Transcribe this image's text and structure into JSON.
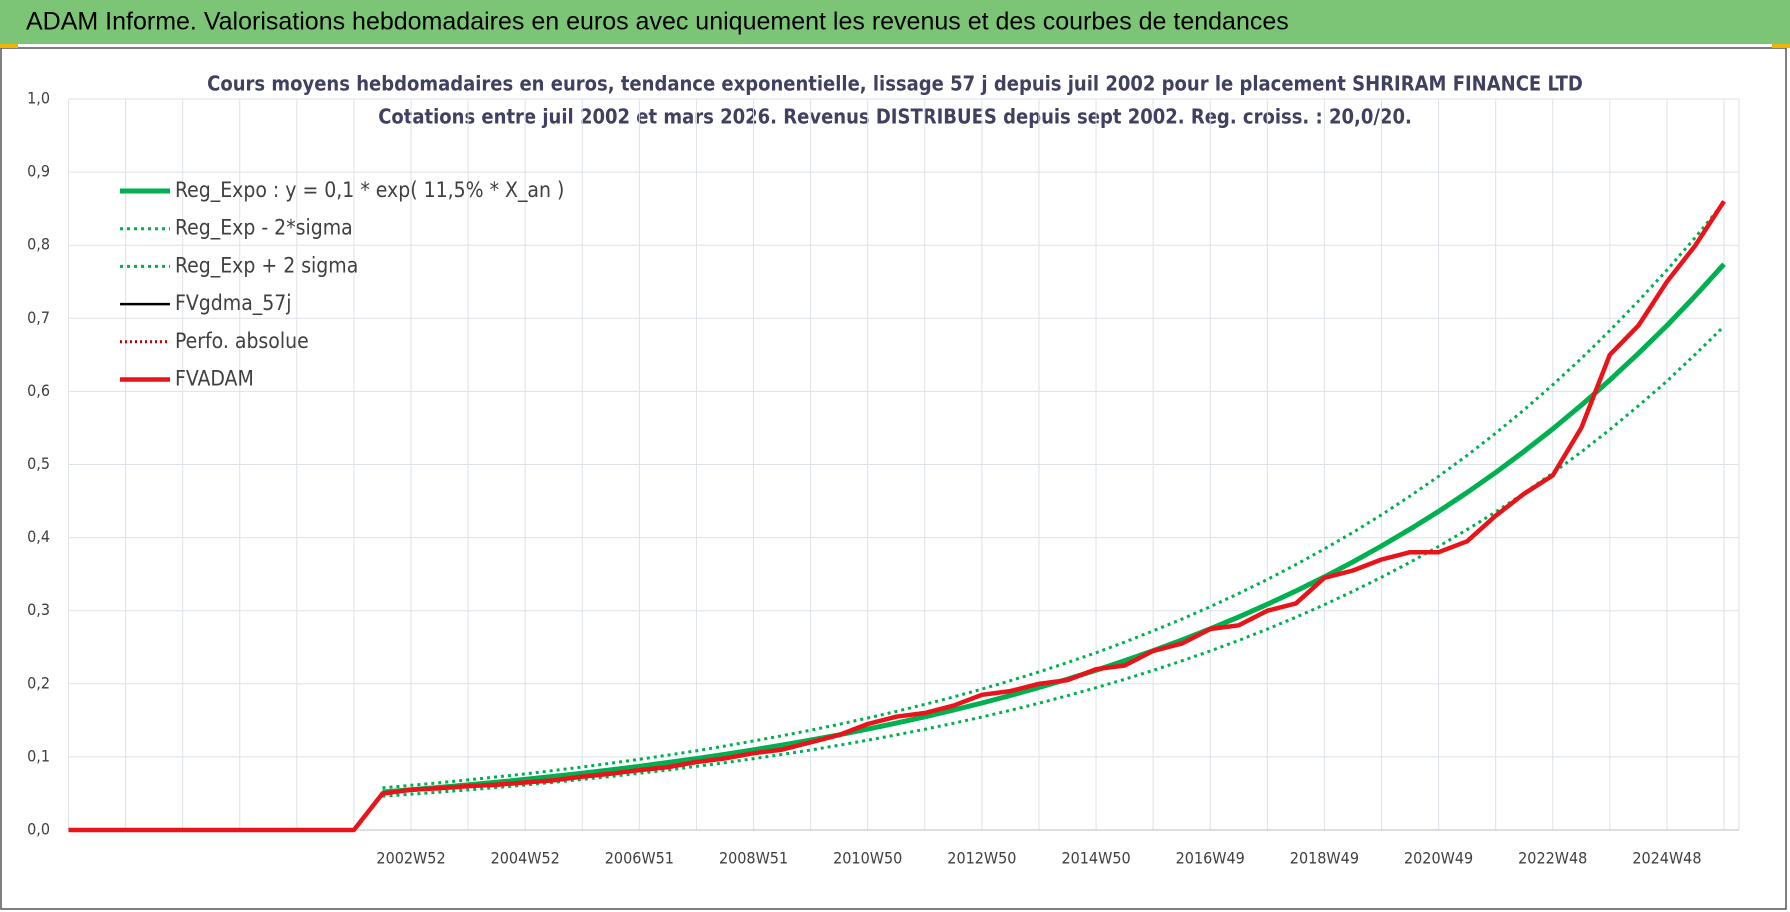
{
  "header": {
    "title": "ADAM Informe. Valorisations hebdomadaires en euros avec uniquement les revenus et des courbes de tendances"
  },
  "chart_data": {
    "type": "line",
    "title": "Cours moyens hebdomadaires en euros, tendance exponentielle, lissage 57 j depuis juil 2002 pour le placement SHRIRAM FINANCE LTD",
    "subtitle": "Cotations entre juil 2002 et mars 2026. Revenus DISTRIBUES depuis sept 2002. Reg. croiss. : 20,0/20.",
    "categories": [
      null,
      null,
      null,
      null,
      null,
      null,
      null,
      null,
      null,
      null,
      null,
      null,
      "2002W52",
      null,
      null,
      null,
      "2004W52",
      null,
      null,
      null,
      "2006W51",
      null,
      null,
      null,
      "2008W51",
      null,
      null,
      null,
      "2010W50",
      null,
      null,
      null,
      "2012W50",
      null,
      null,
      null,
      "2014W50",
      null,
      null,
      null,
      "2016W49",
      null,
      null,
      null,
      "2018W49",
      null,
      null,
      null,
      "2020W49",
      null,
      null,
      null,
      "2022W48",
      null,
      null,
      null,
      "2024W48",
      null,
      null
    ],
    "ylim": [
      0,
      1
    ],
    "yticks": [
      {
        "value": 0,
        "label": "0,0"
      },
      {
        "value": 0.1,
        "label": "0,1"
      },
      {
        "value": 0.2,
        "label": "0,2"
      },
      {
        "value": 0.3,
        "label": "0,3"
      },
      {
        "value": 0.4,
        "label": "0,4"
      },
      {
        "value": 0.5,
        "label": "0,5"
      },
      {
        "value": 0.6,
        "label": "0,6"
      },
      {
        "value": 0.7,
        "label": "0,7"
      },
      {
        "value": 0.8,
        "label": "0,8"
      },
      {
        "value": 0.9,
        "label": "0,9"
      },
      {
        "value": 1,
        "label": "1,0"
      }
    ],
    "grid": true,
    "legend": "upper left",
    "series": [
      {
        "name": "Reg_Expo : y = 0,1 * exp( 11,5% *  X_an )",
        "color": "#00b050",
        "style": "solid",
        "width": 5,
        "values": [
          null,
          null,
          null,
          null,
          null,
          null,
          null,
          null,
          null,
          null,
          null,
          0.0519,
          0.055,
          0.0583,
          0.0617,
          0.0654,
          0.0692,
          0.0733,
          0.0777,
          0.0823,
          0.0871,
          0.0923,
          0.0977,
          0.1035,
          0.1097,
          0.1162,
          0.123,
          0.1303,
          0.138,
          0.1462,
          0.1548,
          0.164,
          0.1737,
          0.184,
          0.1949,
          0.2064,
          0.2186,
          0.2316,
          0.2453,
          0.2598,
          0.2752,
          0.2915,
          0.3087,
          0.327,
          0.3463,
          0.3668,
          0.3885,
          0.4115,
          0.4359,
          0.4617,
          0.489,
          0.518,
          0.5486,
          0.5811,
          0.6155,
          0.652,
          0.69,
          0.731,
          0.774
        ]
      },
      {
        "name": "Reg_Exp - 2*sigma",
        "color": "#00b050",
        "style": "dotted",
        "width": 3,
        "values": [
          null,
          null,
          null,
          null,
          null,
          null,
          null,
          null,
          null,
          null,
          null,
          0.0462,
          0.049,
          0.0519,
          0.0549,
          0.0582,
          0.0616,
          0.0652,
          0.0692,
          0.0732,
          0.0775,
          0.0821,
          0.087,
          0.0921,
          0.0976,
          0.1034,
          0.1095,
          0.116,
          0.1228,
          0.1301,
          0.1378,
          0.146,
          0.1546,
          0.1637,
          0.1735,
          0.1837,
          0.1946,
          0.2061,
          0.2183,
          0.2313,
          0.2449,
          0.2594,
          0.2748,
          0.2911,
          0.3082,
          0.3265,
          0.3458,
          0.3662,
          0.388,
          0.4109,
          0.4352,
          0.461,
          0.4883,
          0.5172,
          0.5478,
          0.5803,
          0.614,
          0.651,
          0.689
        ]
      },
      {
        "name": "Reg_Exp + 2 sigma",
        "color": "#00b050",
        "style": "dotted",
        "width": 3,
        "values": [
          null,
          null,
          null,
          null,
          null,
          null,
          null,
          null,
          null,
          null,
          null,
          0.0576,
          0.0611,
          0.0647,
          0.0685,
          0.0726,
          0.0768,
          0.0814,
          0.0862,
          0.0914,
          0.0967,
          0.1025,
          0.1084,
          0.1149,
          0.1218,
          0.129,
          0.1365,
          0.1446,
          0.1532,
          0.1623,
          0.1718,
          0.182,
          0.1928,
          0.2042,
          0.2163,
          0.2291,
          0.2426,
          0.2571,
          0.2723,
          0.2884,
          0.3055,
          0.3236,
          0.3427,
          0.363,
          0.3845,
          0.4071,
          0.4312,
          0.4568,
          0.4838,
          0.5125,
          0.5428,
          0.575,
          0.609,
          0.645,
          0.6832,
          0.7237,
          0.766,
          0.811,
          0.859
        ]
      },
      {
        "name": "FVgdma_57j",
        "color": "#000000",
        "style": "solid",
        "width": 2.5,
        "values": [
          0,
          0,
          0,
          0,
          0,
          0,
          0,
          0,
          0,
          0,
          0,
          0.05,
          0.055,
          0.057,
          0.06,
          0.062,
          0.065,
          0.068,
          0.073,
          0.077,
          0.082,
          0.086,
          0.093,
          0.098,
          0.105,
          0.11,
          0.12,
          0.13,
          0.145,
          0.155,
          0.16,
          0.17,
          0.185,
          0.19,
          0.2,
          0.205,
          0.22,
          0.225,
          0.245,
          0.255,
          0.275,
          0.28,
          0.3,
          0.31,
          0.345,
          0.355,
          0.37,
          0.38,
          0.38,
          0.395,
          0.43,
          0.46,
          0.485,
          0.55,
          0.65,
          0.69,
          0.75,
          0.8,
          0.86
        ]
      },
      {
        "name": "Perfo. absolue",
        "color": "#c00000",
        "style": "dotted",
        "width": 2,
        "values": [
          0,
          0,
          0,
          0,
          0,
          0,
          0,
          0,
          0,
          0,
          0,
          0.05,
          0.055,
          0.057,
          0.06,
          0.062,
          0.065,
          0.068,
          0.073,
          0.077,
          0.082,
          0.086,
          0.093,
          0.098,
          0.105,
          0.11,
          0.12,
          0.13,
          0.145,
          0.155,
          0.16,
          0.17,
          0.185,
          0.19,
          0.2,
          0.205,
          0.22,
          0.225,
          0.245,
          0.255,
          0.275,
          0.28,
          0.3,
          0.31,
          0.345,
          0.355,
          0.37,
          0.38,
          0.38,
          0.395,
          0.43,
          0.46,
          0.485,
          0.55,
          0.65,
          0.69,
          0.75,
          0.8,
          0.86
        ]
      },
      {
        "name": "FVADAM",
        "color": "#e8141a",
        "style": "solid",
        "width": 4.5,
        "values": [
          0,
          0,
          0,
          0,
          0,
          0,
          0,
          0,
          0,
          0,
          0,
          0.05,
          0.055,
          0.057,
          0.06,
          0.062,
          0.065,
          0.068,
          0.073,
          0.077,
          0.082,
          0.086,
          0.093,
          0.098,
          0.105,
          0.11,
          0.12,
          0.13,
          0.145,
          0.155,
          0.16,
          0.17,
          0.185,
          0.19,
          0.2,
          0.205,
          0.22,
          0.225,
          0.245,
          0.255,
          0.275,
          0.28,
          0.3,
          0.31,
          0.345,
          0.355,
          0.37,
          0.38,
          0.38,
          0.395,
          0.43,
          0.46,
          0.485,
          0.55,
          0.65,
          0.69,
          0.75,
          0.8,
          0.86
        ]
      }
    ]
  }
}
